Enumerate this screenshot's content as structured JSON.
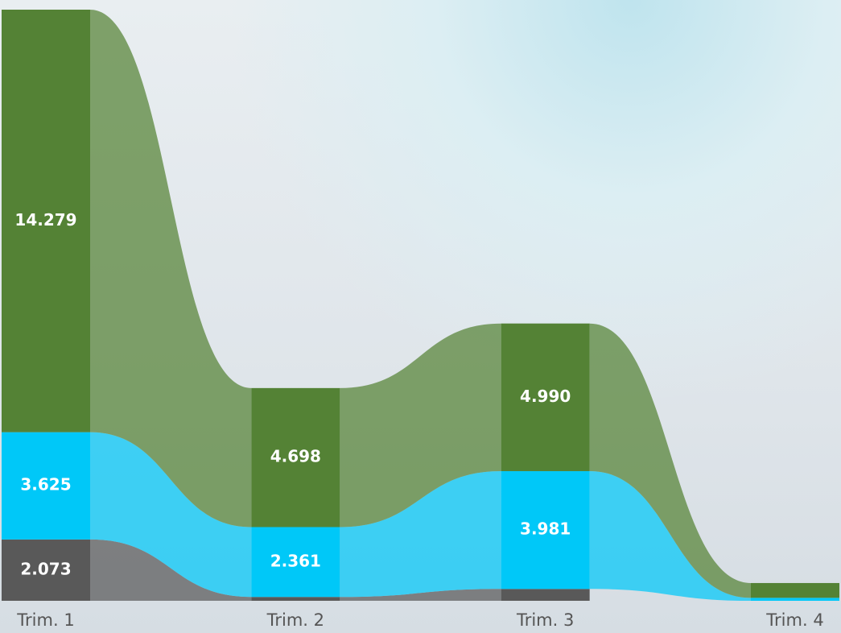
{
  "chart_data": {
    "type": "ribbon",
    "categories": [
      "Trim. 1",
      "Trim. 2",
      "Trim. 3",
      "Trim. 4"
    ],
    "series": [
      {
        "color": "#595959",
        "values": [
          2.073,
          0.13,
          0.4,
          null
        ],
        "value_labels": [
          "2.073",
          null,
          null,
          null
        ]
      },
      {
        "color": "#00c8f8",
        "values": [
          3.625,
          2.361,
          3.981,
          0.1
        ],
        "value_labels": [
          "3.625",
          "2.361",
          "3.981",
          null
        ]
      },
      {
        "color": "#548235",
        "values": [
          14.279,
          4.698,
          4.99,
          0.5
        ],
        "value_labels": [
          "14.279",
          "4.698",
          "4.990",
          null
        ]
      }
    ]
  }
}
